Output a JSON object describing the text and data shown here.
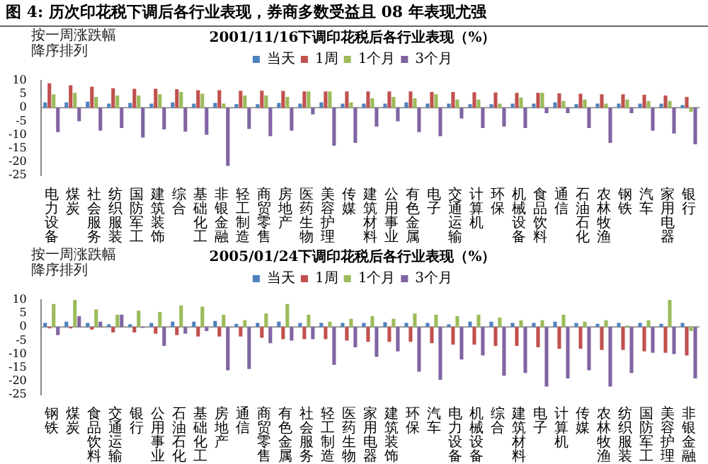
{
  "chart_data": [
    {
      "type": "other",
      "title": "图 4: 历次印花税下调后各行业表现，券商多数受益且 08 年表现尤强"
    },
    {
      "type": "bar",
      "title": "2001/11/16下调印花税后各行业表现（%）",
      "annotations": [
        "按一周涨跌幅降序排列"
      ],
      "legend": "top",
      "ylim": [
        -25,
        10
      ],
      "yticks": [
        -25,
        -20,
        -15,
        -10,
        -5,
        0,
        5,
        10
      ],
      "categories": [
        "电力设备",
        "煤炭",
        "社会服务",
        "纺织服装",
        "国防军工",
        "建筑装饰",
        "综合",
        "基础化工",
        "非银金融",
        "轻工制造",
        "商贸零售",
        "房地产",
        "医药生物",
        "美容护理",
        "传媒",
        "建筑材料",
        "公用事业",
        "有色金属",
        "电子",
        "交通运输",
        "计算机",
        "环保",
        "机械设备",
        "食品饮料",
        "通信",
        "石油石化",
        "农林牧渔",
        "钢铁",
        "汽车",
        "家用电器",
        "银行"
      ],
      "series": [
        {
          "name": "当天",
          "color": "#4f81bd",
          "values": [
            2,
            2,
            2.2,
            1.5,
            1.8,
            1.5,
            2,
            1.5,
            1.8,
            1.3,
            1.3,
            1.8,
            1.5,
            2,
            1.5,
            1.5,
            1.5,
            2,
            1.5,
            1.5,
            1.3,
            1.3,
            1.5,
            1.5,
            2,
            1.3,
            1.5,
            1.5,
            1.5,
            1.5,
            1
          ]
        },
        {
          "name": "1周",
          "color": "#c0504d",
          "values": [
            9,
            8.3,
            7.8,
            7.2,
            7,
            7,
            6.8,
            6.5,
            6.5,
            6.3,
            6.3,
            6.2,
            6,
            6,
            6,
            6,
            6,
            6,
            5.8,
            5.8,
            5.7,
            5.6,
            5.5,
            5.5,
            5.3,
            5.2,
            5,
            5,
            4.8,
            4.5,
            4
          ]
        },
        {
          "name": "1个月",
          "color": "#9bbb59",
          "values": [
            5,
            5.5,
            4,
            4.5,
            4.5,
            5,
            5.8,
            5.2,
            1.5,
            4.5,
            4.5,
            4,
            6,
            6,
            2,
            3.5,
            4,
            3.5,
            5,
            3,
            3,
            1.5,
            3.7,
            5.5,
            2.5,
            3,
            1.5,
            3,
            2.5,
            2.5,
            -1.5
          ]
        },
        {
          "name": "3个月",
          "color": "#8064a2",
          "values": [
            -9,
            -5,
            -8.5,
            -7.5,
            -11,
            -8,
            -8.8,
            -10,
            -21.5,
            -7.8,
            -10.5,
            -8.5,
            -2.5,
            -14,
            -13,
            -7,
            -5,
            -9,
            -10.5,
            -4,
            -7.5,
            -7,
            -7.5,
            -2,
            -2,
            -7.5,
            -13,
            -2,
            -8.5,
            -9.5,
            -13.5
          ]
        }
      ]
    },
    {
      "type": "bar",
      "title": "2005/01/24下调印花税后各行业表现（%）",
      "annotations": [
        "按一周涨跌幅降序排列"
      ],
      "legend": "top",
      "ylim": [
        -25,
        10
      ],
      "yticks": [
        -25,
        -20,
        -15,
        -10,
        -5,
        0,
        5,
        10
      ],
      "categories": [
        "钢铁",
        "煤炭",
        "食品饮料",
        "交通运输",
        "银行",
        "公用事业",
        "石油石化",
        "基础化工",
        "房地产",
        "通信",
        "商贸零售",
        "有色金属",
        "社会服务",
        "轻工制造",
        "医药生物",
        "家用电器",
        "建筑装饰",
        "环保",
        "汽车",
        "电力设备",
        "机械设备",
        "综合",
        "建筑材料",
        "电子",
        "计算机",
        "传媒",
        "农林牧渔",
        "纺织服装",
        "国防军工",
        "美容护理",
        "非银金融"
      ],
      "series": [
        {
          "name": "当天",
          "color": "#4f81bd",
          "values": [
            1.5,
            2,
            1.5,
            1,
            1,
            1.5,
            2,
            2,
            2.2,
            1.2,
            1.5,
            2,
            1.5,
            1.5,
            1.5,
            1.5,
            1.8,
            1.5,
            1.5,
            1,
            2,
            2,
            1.5,
            1.5,
            2,
            1.5,
            1.2,
            1.5,
            1.5,
            1.2,
            1.5
          ]
        },
        {
          "name": "1周",
          "color": "#c0504d",
          "values": [
            -0.5,
            -0.5,
            -1,
            -2,
            -2,
            -2.5,
            -3,
            -3.5,
            -3.5,
            -3.5,
            -4,
            -4.5,
            -4.5,
            -4.5,
            -5,
            -5.5,
            -5.5,
            -5.5,
            -6,
            -6.5,
            -6.5,
            -7,
            -7,
            -7.5,
            -8,
            -8,
            -8.5,
            -8.5,
            -9,
            -9.5,
            -10.5
          ]
        },
        {
          "name": "1个月",
          "color": "#9bbb59",
          "values": [
            8.5,
            10,
            6.5,
            4.5,
            6,
            5.5,
            8,
            7.5,
            4.5,
            2.5,
            5,
            8.5,
            4.5,
            2,
            3,
            4,
            3,
            5,
            4.5,
            4,
            4.5,
            3.5,
            2.5,
            2.5,
            4.5,
            2,
            2.5,
            0.5,
            2.5,
            10,
            -1.5
          ]
        },
        {
          "name": "3个月",
          "color": "#8064a2",
          "values": [
            -3,
            4,
            2,
            4.5,
            -0.3,
            -7,
            -2.5,
            -1.5,
            -16,
            -15.5,
            -6,
            -5,
            -4.5,
            -14,
            -7.5,
            -11,
            -9,
            -16.5,
            -19.5,
            -12,
            -10.5,
            -18,
            -17,
            -22,
            -19,
            -16,
            -22,
            -17,
            -9.5,
            -10,
            -19
          ]
        }
      ]
    }
  ]
}
